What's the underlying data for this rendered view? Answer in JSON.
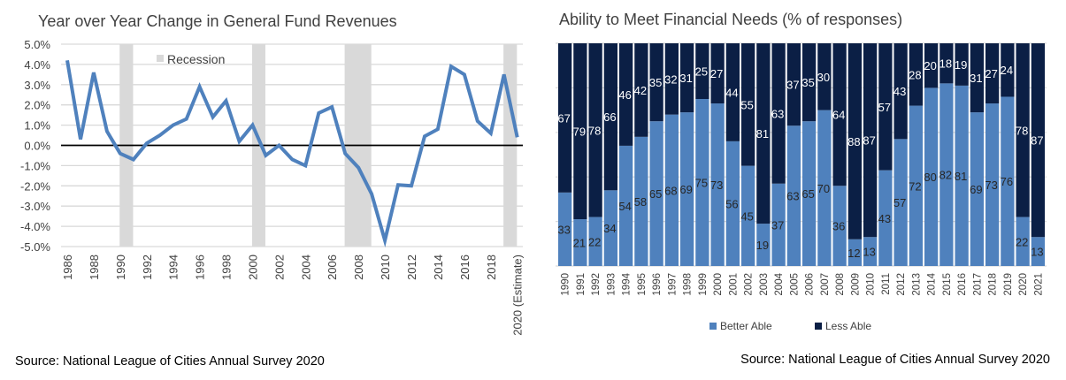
{
  "chart_data": [
    {
      "type": "line",
      "title": "Year over Year Change in General Fund Revenues",
      "xlabel": "",
      "ylabel": "",
      "ylim": [
        -5.0,
        5.0
      ],
      "y_ticks": [
        "5.0%",
        "4.0%",
        "3.0%",
        "2.0%",
        "1.0%",
        "0.0%",
        "-1.0%",
        "-2.0%",
        "-3.0%",
        "-4.0%",
        "-5.0%"
      ],
      "y_tick_values": [
        5,
        4,
        3,
        2,
        1,
        0,
        -1,
        -2,
        -3,
        -4,
        -5
      ],
      "x": [
        1986,
        1987,
        1988,
        1989,
        1990,
        1991,
        1992,
        1993,
        1994,
        1995,
        1996,
        1997,
        1998,
        1999,
        2000,
        2001,
        2002,
        2003,
        2004,
        2005,
        2006,
        2007,
        2008,
        2009,
        2010,
        2011,
        2012,
        2013,
        2014,
        2015,
        2016,
        2017,
        2018,
        2019,
        2020
      ],
      "x_tick_labels": [
        {
          "x": 1986,
          "label": "1986"
        },
        {
          "x": 1988,
          "label": "1988"
        },
        {
          "x": 1990,
          "label": "1990"
        },
        {
          "x": 1992,
          "label": "1992"
        },
        {
          "x": 1994,
          "label": "1994"
        },
        {
          "x": 1996,
          "label": "1996"
        },
        {
          "x": 1998,
          "label": "1998"
        },
        {
          "x": 2000,
          "label": "2000"
        },
        {
          "x": 2002,
          "label": "2002"
        },
        {
          "x": 2004,
          "label": "2004"
        },
        {
          "x": 2006,
          "label": "2006"
        },
        {
          "x": 2008,
          "label": "2008"
        },
        {
          "x": 2010,
          "label": "2010"
        },
        {
          "x": 2012,
          "label": "2012"
        },
        {
          "x": 2014,
          "label": "2014"
        },
        {
          "x": 2016,
          "label": "2016"
        },
        {
          "x": 2018,
          "label": "2018"
        },
        {
          "x": 2020,
          "label": "2020 (Estimate)"
        }
      ],
      "series": [
        {
          "name": "Year over Year Change",
          "color": "#4F81BD",
          "values": [
            4.2,
            0.3,
            3.6,
            0.7,
            -0.4,
            -0.7,
            0.1,
            0.5,
            1.0,
            1.3,
            2.9,
            1.4,
            2.2,
            0.2,
            1.0,
            -0.5,
            0.0,
            -0.7,
            -1.0,
            1.6,
            1.9,
            -0.4,
            -1.1,
            -2.4,
            -4.7,
            -1.95,
            -2.0,
            0.45,
            0.8,
            3.9,
            3.5,
            1.2,
            0.6,
            3.5,
            0.4
          ]
        }
      ],
      "recession_bands": {
        "name": "Recession",
        "color": "#D9D9D9",
        "ranges": [
          [
            1990,
            1991
          ],
          [
            2000,
            2001
          ],
          [
            2007,
            2009
          ],
          [
            2019,
            2020
          ]
        ]
      },
      "legend": {
        "entries": [
          "Recession"
        ],
        "placement": "top-left"
      },
      "grid": true,
      "zero_line": true,
      "source": "Source:  National League of Cities Annual Survey 2020"
    },
    {
      "type": "bar",
      "stacked": true,
      "title": "Ability to Meet Financial Needs (% of responses)",
      "xlabel": "",
      "ylabel": "",
      "ylim": [
        0,
        100
      ],
      "categories": [
        "1990",
        "1991",
        "1992",
        "1993",
        "1994",
        "1995",
        "1996",
        "1997",
        "1998",
        "1999",
        "2000",
        "2001",
        "2002",
        "2003",
        "2004",
        "2005",
        "2006",
        "2007",
        "2008",
        "2009",
        "2010",
        "2011",
        "2012",
        "2013",
        "2014",
        "2015",
        "2016",
        "2017",
        "2018",
        "2019",
        "2020",
        "2021"
      ],
      "series": [
        {
          "name": "Better Able",
          "color": "#4F81BD",
          "label_color": "#262626",
          "values": [
            33,
            21,
            22,
            34,
            54,
            58,
            65,
            68,
            69,
            75,
            73,
            56,
            45,
            19,
            37,
            63,
            65,
            70,
            36,
            12,
            13,
            43,
            57,
            72,
            80,
            82,
            81,
            69,
            73,
            76,
            22,
            13
          ]
        },
        {
          "name": "Less Able",
          "color": "#0B1F45",
          "label_color": "#FFFFFF",
          "values": [
            67,
            79,
            78,
            66,
            46,
            42,
            35,
            32,
            31,
            25,
            27,
            44,
            55,
            81,
            63,
            37,
            35,
            30,
            64,
            88,
            87,
            57,
            43,
            28,
            20,
            18,
            19,
            31,
            27,
            24,
            78,
            87
          ]
        }
      ],
      "grid": true,
      "legend": {
        "entries": [
          "Better Able",
          "Less Able"
        ],
        "placement": "bottom"
      },
      "source": "Source:  National League of Cities Annual Survey 2020"
    }
  ]
}
